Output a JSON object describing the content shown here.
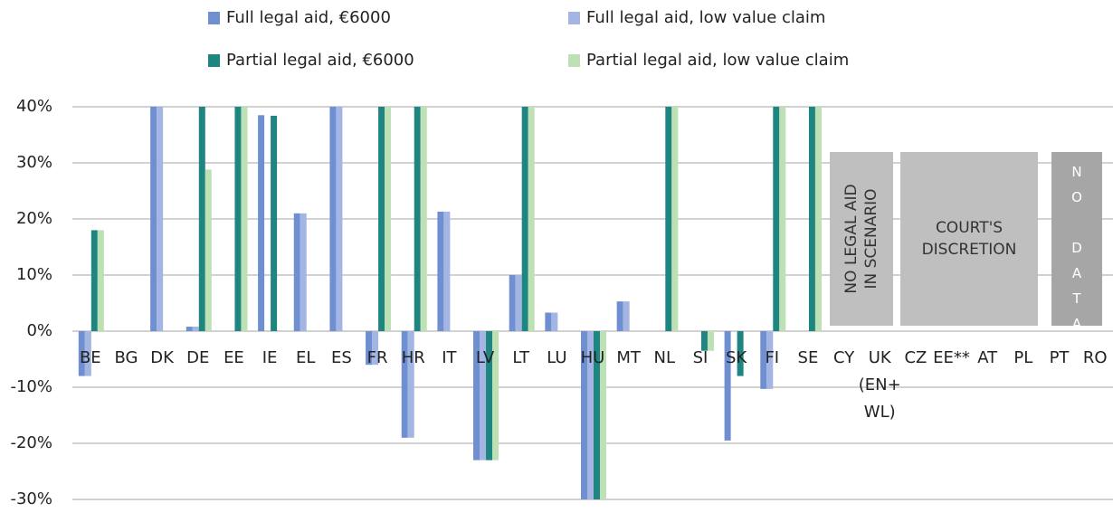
{
  "chart_data": {
    "type": "bar",
    "categories": [
      "BE",
      "BG",
      "DK",
      "DE",
      "EE",
      "IE",
      "EL",
      "ES",
      "FR",
      "HR",
      "IT",
      "LV",
      "LT",
      "LU",
      "HU",
      "MT",
      "NL",
      "SI",
      "SK",
      "FI",
      "SE",
      "CY",
      "UK (EN+ WL)",
      "CZ",
      "EE**",
      "AT",
      "PL",
      "PT",
      "RO"
    ],
    "series": [
      {
        "name": "Full legal aid, €6000",
        "color": "#6f8fd0",
        "values": [
          -8,
          null,
          40,
          0.8,
          null,
          38.5,
          21,
          40,
          -6,
          -19,
          21.3,
          -23,
          10,
          3.3,
          -30,
          5.3,
          null,
          null,
          -19.5,
          -10.3,
          null,
          null,
          null,
          null,
          null,
          null,
          null,
          null,
          null
        ]
      },
      {
        "name": "Full legal aid, low value claim",
        "color": "#a3b5e2",
        "values": [
          -8,
          null,
          40,
          0.8,
          null,
          null,
          21,
          40,
          -6,
          -19,
          21.3,
          -23,
          10,
          3.3,
          -30,
          5.3,
          null,
          null,
          null,
          -10.3,
          null,
          null,
          null,
          null,
          null,
          null,
          null,
          null,
          null
        ]
      },
      {
        "name": "Partial legal aid, €6000",
        "color": "#1f8580",
        "values": [
          18,
          null,
          null,
          40,
          40,
          38.4,
          null,
          null,
          40,
          40,
          null,
          -23,
          40,
          null,
          -30,
          null,
          40,
          -3.5,
          -8,
          40,
          40,
          null,
          null,
          null,
          null,
          null,
          null,
          null,
          null
        ]
      },
      {
        "name": "Partial legal aid, low value claim",
        "color": "#bde0b4",
        "values": [
          18,
          null,
          null,
          28.8,
          40,
          null,
          null,
          null,
          40,
          40,
          null,
          -23,
          40,
          null,
          -30,
          null,
          40,
          -3.5,
          null,
          40,
          40,
          null,
          null,
          null,
          null,
          null,
          null,
          null,
          null
        ]
      }
    ],
    "ylim": [
      -30,
      40
    ],
    "yticks": [
      {
        "value": -30,
        "label": "-30%"
      },
      {
        "value": -20,
        "label": "-20%"
      },
      {
        "value": -10,
        "label": "-10%"
      },
      {
        "value": 0,
        "label": "0%"
      },
      {
        "value": 10,
        "label": "10%"
      },
      {
        "value": 20,
        "label": "20%"
      },
      {
        "value": 30,
        "label": "30%"
      },
      {
        "value": 40,
        "label": "40%"
      }
    ],
    "grid": true,
    "legend": "top",
    "annotations": [
      "NO LEGAL AID IN SCENARIO",
      "COURT'S DISCRETION",
      "NO DATA"
    ]
  }
}
